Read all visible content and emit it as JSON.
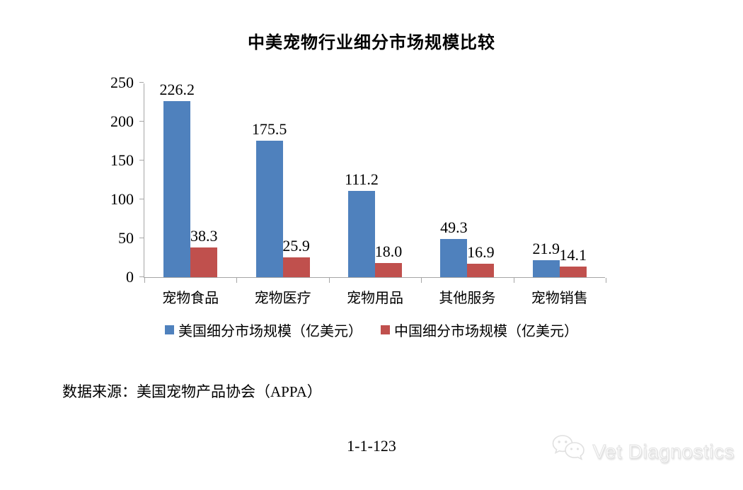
{
  "page": {
    "title": "中美宠物行业细分市场规模比较",
    "source_note": "数据来源：美国宠物产品协会（APPA）",
    "page_number": "1-1-123",
    "watermark": {
      "icon": "wechat-icon",
      "text": "Vet Diagnostics"
    }
  },
  "chart_data": {
    "type": "bar",
    "title": "中美宠物行业细分市场规模比较",
    "categories": [
      "宠物食品",
      "宠物医疗",
      "宠物用品",
      "其他服务",
      "宠物销售"
    ],
    "series": [
      {
        "name": "美国细分市场规模（亿美元）",
        "color": "#4F81BD",
        "values": [
          226.2,
          175.5,
          111.2,
          49.3,
          21.9
        ]
      },
      {
        "name": "中国细分市场规模（亿美元）",
        "color": "#C0504D",
        "values": [
          38.3,
          25.9,
          18.0,
          16.9,
          14.1
        ]
      }
    ],
    "value_label_decimals": 1,
    "xlabel": "",
    "ylabel": "",
    "ylim": [
      0,
      250
    ],
    "yticks": [
      0,
      50,
      100,
      150,
      200,
      250
    ],
    "grid": false,
    "legend_position": "bottom",
    "axis_color": "#a6a6a6",
    "background": "#ffffff"
  }
}
